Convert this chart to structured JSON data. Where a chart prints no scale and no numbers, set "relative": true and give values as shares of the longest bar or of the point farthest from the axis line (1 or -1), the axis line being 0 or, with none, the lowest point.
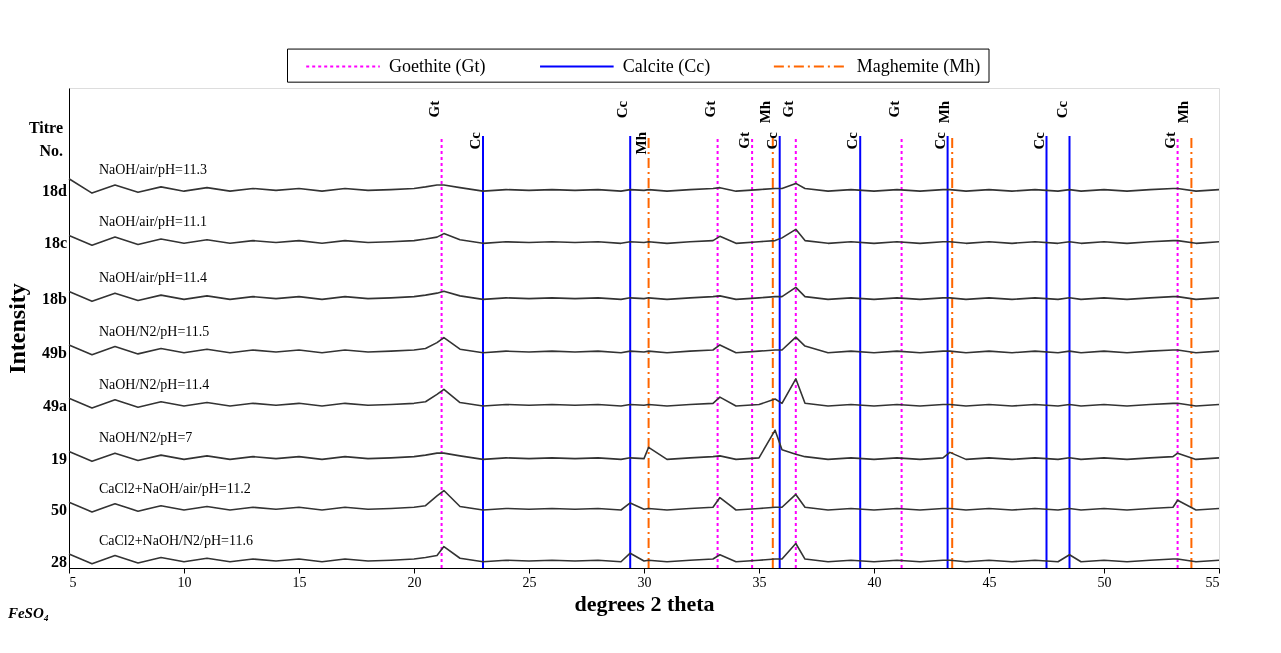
{
  "chart_data": {
    "type": "line",
    "relative": true,
    "xlabel": "degrees 2 theta",
    "ylabel": "Intensity",
    "xlim": [
      5,
      55
    ],
    "xticks": [
      5,
      10,
      15,
      20,
      25,
      30,
      35,
      40,
      45,
      50,
      55
    ],
    "grid": false,
    "legend": "top",
    "marker": "none",
    "line_style": "solid",
    "x": [
      5,
      6,
      7,
      8,
      9,
      10,
      11,
      12,
      13,
      14,
      15,
      16,
      17,
      18,
      19,
      20,
      20.5,
      21,
      21.3,
      22,
      23,
      24,
      25,
      26,
      27,
      28,
      29,
      29.4,
      30,
      30.2,
      31,
      32,
      33,
      33.3,
      34,
      35,
      35.7,
      36,
      36.6,
      37,
      38,
      39,
      40,
      41,
      42,
      43,
      43.3,
      44,
      45,
      46,
      47,
      48,
      48.5,
      49,
      50,
      51,
      52,
      53,
      53.2,
      54,
      55
    ],
    "series": [
      {
        "name": "NaOH/air/pH=11.3",
        "color": "#333333",
        "values": [
          1.0,
          0.963,
          0.984,
          0.965,
          0.979,
          0.968,
          0.977,
          0.968,
          0.975,
          0.97,
          0.975,
          0.968,
          0.975,
          0.97,
          0.972,
          0.975,
          0.979,
          0.984,
          0.984,
          0.977,
          0.968,
          0.972,
          0.97,
          0.972,
          0.97,
          0.972,
          0.968,
          0.972,
          0.97,
          0.972,
          0.968,
          0.972,
          0.975,
          0.977,
          0.968,
          0.972,
          0.975,
          0.975,
          0.988,
          0.975,
          0.968,
          0.972,
          0.968,
          0.972,
          0.968,
          0.972,
          0.972,
          0.968,
          0.972,
          0.968,
          0.972,
          0.968,
          0.972,
          0.968,
          0.972,
          0.968,
          0.972,
          0.975,
          0.975,
          0.968,
          0.972
        ]
      },
      {
        "name": "NaOH/air/pH=11.1",
        "color": "#333333",
        "values": [
          0.854,
          0.829,
          0.85,
          0.831,
          0.845,
          0.834,
          0.843,
          0.834,
          0.841,
          0.836,
          0.841,
          0.834,
          0.841,
          0.836,
          0.838,
          0.841,
          0.845,
          0.85,
          0.859,
          0.843,
          0.834,
          0.838,
          0.836,
          0.838,
          0.836,
          0.838,
          0.834,
          0.838,
          0.836,
          0.838,
          0.834,
          0.838,
          0.841,
          0.852,
          0.834,
          0.838,
          0.841,
          0.848,
          0.87,
          0.841,
          0.834,
          0.838,
          0.834,
          0.838,
          0.834,
          0.838,
          0.838,
          0.834,
          0.838,
          0.834,
          0.838,
          0.834,
          0.838,
          0.834,
          0.838,
          0.834,
          0.838,
          0.841,
          0.841,
          0.834,
          0.838
        ]
      },
      {
        "name": "NaOH/air/pH=11.4",
        "color": "#333333",
        "values": [
          0.71,
          0.685,
          0.706,
          0.687,
          0.701,
          0.69,
          0.699,
          0.69,
          0.697,
          0.692,
          0.697,
          0.69,
          0.697,
          0.692,
          0.694,
          0.697,
          0.701,
          0.706,
          0.711,
          0.699,
          0.69,
          0.694,
          0.692,
          0.694,
          0.692,
          0.694,
          0.69,
          0.694,
          0.692,
          0.694,
          0.69,
          0.694,
          0.697,
          0.699,
          0.69,
          0.694,
          0.697,
          0.697,
          0.721,
          0.697,
          0.69,
          0.694,
          0.69,
          0.694,
          0.69,
          0.694,
          0.694,
          0.69,
          0.694,
          0.69,
          0.694,
          0.69,
          0.694,
          0.69,
          0.694,
          0.69,
          0.694,
          0.697,
          0.697,
          0.69,
          0.694
        ]
      },
      {
        "name": "NaOH/N2/pH=11.5",
        "color": "#333333",
        "values": [
          0.573,
          0.548,
          0.569,
          0.55,
          0.564,
          0.553,
          0.562,
          0.553,
          0.56,
          0.555,
          0.56,
          0.553,
          0.56,
          0.555,
          0.557,
          0.56,
          0.564,
          0.579,
          0.592,
          0.562,
          0.553,
          0.557,
          0.555,
          0.557,
          0.555,
          0.557,
          0.553,
          0.557,
          0.555,
          0.557,
          0.553,
          0.557,
          0.56,
          0.573,
          0.553,
          0.557,
          0.56,
          0.56,
          0.593,
          0.57,
          0.553,
          0.557,
          0.553,
          0.557,
          0.553,
          0.557,
          0.557,
          0.553,
          0.557,
          0.553,
          0.557,
          0.553,
          0.557,
          0.553,
          0.557,
          0.553,
          0.557,
          0.56,
          0.56,
          0.553,
          0.557
        ]
      },
      {
        "name": "NaOH/N2/pH=11.4",
        "color": "#333333",
        "values": [
          0.436,
          0.411,
          0.432,
          0.413,
          0.427,
          0.416,
          0.425,
          0.416,
          0.423,
          0.418,
          0.423,
          0.416,
          0.423,
          0.418,
          0.42,
          0.423,
          0.427,
          0.446,
          0.459,
          0.425,
          0.416,
          0.42,
          0.418,
          0.42,
          0.418,
          0.42,
          0.416,
          0.42,
          0.418,
          0.42,
          0.416,
          0.42,
          0.423,
          0.439,
          0.416,
          0.42,
          0.434,
          0.423,
          0.486,
          0.423,
          0.416,
          0.42,
          0.416,
          0.42,
          0.416,
          0.42,
          0.42,
          0.416,
          0.42,
          0.416,
          0.42,
          0.416,
          0.42,
          0.416,
          0.42,
          0.416,
          0.42,
          0.423,
          0.423,
          0.416,
          0.42
        ]
      },
      {
        "name": "NaOH/N2/pH=7",
        "color": "#333333",
        "values": [
          0.299,
          0.274,
          0.295,
          0.276,
          0.29,
          0.279,
          0.288,
          0.279,
          0.286,
          0.281,
          0.286,
          0.279,
          0.286,
          0.281,
          0.283,
          0.286,
          0.29,
          0.295,
          0.295,
          0.288,
          0.279,
          0.283,
          0.281,
          0.283,
          0.281,
          0.283,
          0.279,
          0.283,
          0.281,
          0.31,
          0.279,
          0.283,
          0.286,
          0.288,
          0.279,
          0.283,
          0.354,
          0.304,
          0.292,
          0.286,
          0.279,
          0.283,
          0.279,
          0.283,
          0.279,
          0.283,
          0.297,
          0.279,
          0.283,
          0.279,
          0.283,
          0.279,
          0.283,
          0.279,
          0.283,
          0.279,
          0.283,
          0.286,
          0.295,
          0.279,
          0.283
        ]
      },
      {
        "name": "CaCl2+NaOH/air/pH=11.2",
        "color": "#333333",
        "values": [
          0.169,
          0.144,
          0.165,
          0.146,
          0.16,
          0.149,
          0.158,
          0.149,
          0.156,
          0.151,
          0.156,
          0.149,
          0.156,
          0.151,
          0.153,
          0.156,
          0.16,
          0.185,
          0.199,
          0.158,
          0.149,
          0.153,
          0.151,
          0.153,
          0.151,
          0.153,
          0.149,
          0.167,
          0.151,
          0.153,
          0.149,
          0.153,
          0.156,
          0.181,
          0.149,
          0.153,
          0.156,
          0.156,
          0.189,
          0.156,
          0.149,
          0.153,
          0.149,
          0.153,
          0.149,
          0.153,
          0.153,
          0.149,
          0.153,
          0.149,
          0.153,
          0.149,
          0.153,
          0.149,
          0.153,
          0.149,
          0.153,
          0.156,
          0.174,
          0.149,
          0.153
        ]
      },
      {
        "name": "CaCl2+NaOH/N2/pH=11.6",
        "color": "#333333",
        "values": [
          0.036,
          0.011,
          0.032,
          0.013,
          0.027,
          0.016,
          0.025,
          0.016,
          0.023,
          0.018,
          0.023,
          0.016,
          0.023,
          0.018,
          0.02,
          0.023,
          0.027,
          0.032,
          0.055,
          0.025,
          0.016,
          0.02,
          0.018,
          0.02,
          0.018,
          0.02,
          0.016,
          0.038,
          0.018,
          0.02,
          0.016,
          0.02,
          0.023,
          0.034,
          0.016,
          0.02,
          0.023,
          0.023,
          0.063,
          0.023,
          0.016,
          0.02,
          0.016,
          0.02,
          0.016,
          0.02,
          0.02,
          0.016,
          0.02,
          0.016,
          0.02,
          0.016,
          0.034,
          0.016,
          0.02,
          0.016,
          0.02,
          0.023,
          0.023,
          0.016,
          0.02
        ]
      }
    ],
    "ref_lines": [
      {
        "axis": "x",
        "value": 21.2,
        "label": "Gt",
        "color": "#ff00ff",
        "line_style": "dotted"
      },
      {
        "axis": "x",
        "value": 23.0,
        "label": "Cc",
        "color": "#0000ff",
        "line_style": "solid"
      },
      {
        "axis": "x",
        "value": 29.4,
        "label": "Cc",
        "color": "#0000ff",
        "line_style": "solid"
      },
      {
        "axis": "x",
        "value": 30.2,
        "label": "Mh",
        "color": "#ff6600",
        "line_style": "dashdot"
      },
      {
        "axis": "x",
        "value": 33.2,
        "label": "Gt",
        "color": "#ff00ff",
        "line_style": "dotted"
      },
      {
        "axis": "x",
        "value": 34.7,
        "label": "Gt",
        "color": "#ff00ff",
        "line_style": "dotted"
      },
      {
        "axis": "x",
        "value": 35.6,
        "label": "Mh",
        "color": "#ff6600",
        "line_style": "dashdot"
      },
      {
        "axis": "x",
        "value": 35.9,
        "label": "Cc",
        "color": "#0000ff",
        "line_style": "solid"
      },
      {
        "axis": "x",
        "value": 36.6,
        "label": "Gt",
        "color": "#ff00ff",
        "line_style": "dotted"
      },
      {
        "axis": "x",
        "value": 39.4,
        "label": "Cc",
        "color": "#0000ff",
        "line_style": "solid"
      },
      {
        "axis": "x",
        "value": 41.2,
        "label": "Gt",
        "color": "#ff00ff",
        "line_style": "dotted"
      },
      {
        "axis": "x",
        "value": 43.2,
        "label": "Cc",
        "color": "#0000ff",
        "line_style": "solid"
      },
      {
        "axis": "x",
        "value": 43.4,
        "label": "Mh",
        "color": "#ff6600",
        "line_style": "dashdot"
      },
      {
        "axis": "x",
        "value": 47.5,
        "label": "Cc",
        "color": "#0000ff",
        "line_style": "solid"
      },
      {
        "axis": "x",
        "value": 48.5,
        "label": "Cc",
        "color": "#0000ff",
        "line_style": "solid"
      },
      {
        "axis": "x",
        "value": 53.2,
        "label": "Gt",
        "color": "#ff00ff",
        "line_style": "dotted"
      },
      {
        "axis": "x",
        "value": 53.8,
        "label": "Mh",
        "color": "#ff6600",
        "line_style": "dashdot"
      }
    ],
    "annotations": [
      "Goethite (Gt)",
      "Calcite (Cc)",
      "Maghemite (Mh)",
      "Titre No.",
      "18d",
      "18c",
      "18b",
      "49b",
      "49a",
      "19",
      "50",
      "28",
      "FeSO₄"
    ]
  }
}
